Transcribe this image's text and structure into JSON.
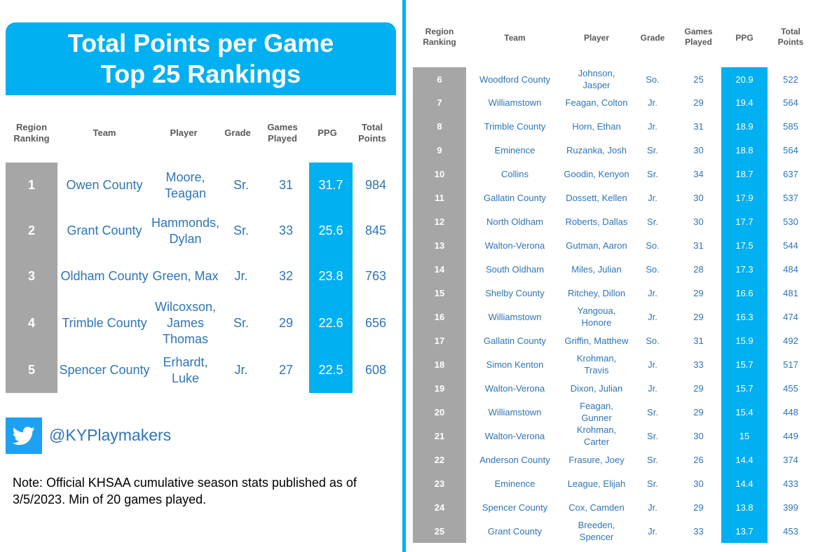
{
  "title": {
    "line1": "Total Points per Game",
    "line2": "Top 25 Rankings"
  },
  "columns": {
    "rank": "Region Ranking",
    "team": "Team",
    "player": "Player",
    "grade": "Grade",
    "games": "Games Played",
    "ppg": "PPG",
    "total": "Total Points"
  },
  "top5": [
    {
      "rank": "1",
      "team": "Owen County",
      "player": "Moore, Teagan",
      "grade": "Sr.",
      "games": "31",
      "ppg": "31.7",
      "total": "984"
    },
    {
      "rank": "2",
      "team": "Grant County",
      "player": "Hammonds, Dylan",
      "grade": "Sr.",
      "games": "33",
      "ppg": "25.6",
      "total": "845"
    },
    {
      "rank": "3",
      "team": "Oldham County",
      "player": "Green, Max",
      "grade": "Jr.",
      "games": "32",
      "ppg": "23.8",
      "total": "763"
    },
    {
      "rank": "4",
      "team": "Trimble County",
      "player": "Wilcoxson, James Thomas",
      "grade": "Sr.",
      "games": "29",
      "ppg": "22.6",
      "total": "656"
    },
    {
      "rank": "5",
      "team": "Spencer County",
      "player": "Erhardt, Luke",
      "grade": "Jr.",
      "games": "27",
      "ppg": "22.5",
      "total": "608"
    }
  ],
  "rest": [
    {
      "rank": "6",
      "team": "Woodford County",
      "player": "Johnson, Jasper",
      "grade": "So.",
      "games": "25",
      "ppg": "20.9",
      "total": "522"
    },
    {
      "rank": "7",
      "team": "Williamstown",
      "player": "Feagan, Colton",
      "grade": "Jr.",
      "games": "29",
      "ppg": "19.4",
      "total": "564"
    },
    {
      "rank": "8",
      "team": "Trimble County",
      "player": "Horn, Ethan",
      "grade": "Jr.",
      "games": "31",
      "ppg": "18.9",
      "total": "585"
    },
    {
      "rank": "9",
      "team": "Eminence",
      "player": "Ruzanka, Josh",
      "grade": "Sr.",
      "games": "30",
      "ppg": "18.8",
      "total": "564"
    },
    {
      "rank": "10",
      "team": "Collins",
      "player": "Goodin, Kenyon",
      "grade": "Sr.",
      "games": "34",
      "ppg": "18.7",
      "total": "637"
    },
    {
      "rank": "11",
      "team": "Gallatin County",
      "player": "Dossett, Kellen",
      "grade": "Jr.",
      "games": "30",
      "ppg": "17.9",
      "total": "537"
    },
    {
      "rank": "12",
      "team": "North Oldham",
      "player": "Roberts, Dallas",
      "grade": "Sr.",
      "games": "30",
      "ppg": "17.7",
      "total": "530"
    },
    {
      "rank": "13",
      "team": "Walton-Verona",
      "player": "Gutman, Aaron",
      "grade": "So.",
      "games": "31",
      "ppg": "17.5",
      "total": "544"
    },
    {
      "rank": "14",
      "team": "South Oldham",
      "player": "Miles, Julian",
      "grade": "So.",
      "games": "28",
      "ppg": "17.3",
      "total": "484"
    },
    {
      "rank": "15",
      "team": "Shelby County",
      "player": "Ritchey, Dillon",
      "grade": "Jr.",
      "games": "29",
      "ppg": "16.6",
      "total": "481"
    },
    {
      "rank": "16",
      "team": "Williamstown",
      "player": "Yangoua, Honore",
      "grade": "Jr.",
      "games": "29",
      "ppg": "16.3",
      "total": "474"
    },
    {
      "rank": "17",
      "team": "Gallatin County",
      "player": "Griffin, Matthew",
      "grade": "So.",
      "games": "31",
      "ppg": "15.9",
      "total": "492"
    },
    {
      "rank": "18",
      "team": "Simon Kenton",
      "player": "Krohman, Travis",
      "grade": "Jr.",
      "games": "33",
      "ppg": "15.7",
      "total": "517"
    },
    {
      "rank": "19",
      "team": "Walton-Verona",
      "player": "Dixon, Julian",
      "grade": "Jr.",
      "games": "29",
      "ppg": "15.7",
      "total": "455"
    },
    {
      "rank": "20",
      "team": "Williamstown",
      "player": "Feagan, Gunner",
      "grade": "Sr.",
      "games": "29",
      "ppg": "15.4",
      "total": "448"
    },
    {
      "rank": "21",
      "team": "Walton-Verona",
      "player": "Krohman, Carter",
      "grade": "Sr.",
      "games": "30",
      "ppg": "15",
      "total": "449"
    },
    {
      "rank": "22",
      "team": "Anderson County",
      "player": "Frasure, Joey",
      "grade": "Sr.",
      "games": "26",
      "ppg": "14.4",
      "total": "374"
    },
    {
      "rank": "23",
      "team": "Eminence",
      "player": "League, Elijah",
      "grade": "Sr.",
      "games": "30",
      "ppg": "14.4",
      "total": "433"
    },
    {
      "rank": "24",
      "team": "Spencer County",
      "player": "Cox, Camden",
      "grade": "Jr.",
      "games": "29",
      "ppg": "13.8",
      "total": "399"
    },
    {
      "rank": "25",
      "team": "Grant County",
      "player": "Breeden, Spencer",
      "grade": "Jr.",
      "games": "33",
      "ppg": "13.7",
      "total": "453"
    }
  ],
  "twitter": {
    "icon": "twitter-bird-icon",
    "handle": "@KYPlaymakers"
  },
  "note": "Note: Official KHSAA cumulative season stats published as of 3/5/2023. Min of 20 games played.",
  "colors": {
    "accent": "#00b0f0",
    "rank_bg": "#a6a6a6",
    "text_blue": "#2e75b6",
    "header_gray": "#595959",
    "twitter": "#1da1f2"
  }
}
